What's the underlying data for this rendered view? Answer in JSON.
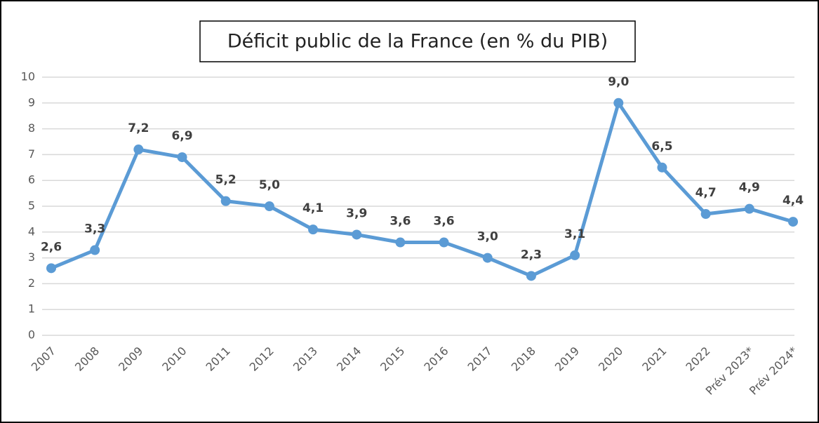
{
  "chart_data": {
    "type": "line",
    "title": "Déficit public de la France (en % du PIB)",
    "categories": [
      "2007",
      "2008",
      "2009",
      "2010",
      "2011",
      "2012",
      "2013",
      "2014",
      "2015",
      "2016",
      "2017",
      "2018",
      "2019",
      "2020",
      "2021",
      "2022",
      "Prév 2023*",
      "Prév 2024*"
    ],
    "series": [
      {
        "color": "#5b9bd5",
        "values": [
          2.6,
          3.3,
          7.2,
          6.9,
          5.2,
          5.0,
          4.1,
          3.9,
          3.6,
          3.6,
          3.0,
          2.3,
          3.1,
          9.0,
          6.5,
          4.7,
          4.9,
          4.4
        ],
        "value_labels": [
          "2,6",
          "3,3",
          "7,2",
          "6,9",
          "5,2",
          "5,0",
          "4,1",
          "3,9",
          "3,6",
          "3,6",
          "3,0",
          "2,3",
          "3,1",
          "9,0",
          "6,5",
          "4,7",
          "4,9",
          "4,4"
        ]
      }
    ],
    "ylim": [
      0,
      10
    ],
    "yticks": [
      0,
      1,
      2,
      3,
      4,
      5,
      6,
      7,
      8,
      9,
      10
    ],
    "grid": true
  }
}
